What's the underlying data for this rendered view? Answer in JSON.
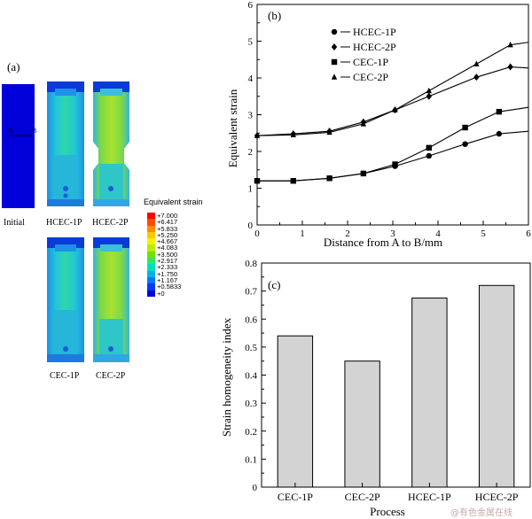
{
  "panel_a": {
    "label": "(a)",
    "section_marker_a": "A",
    "section_marker_b": "B",
    "captions": [
      "Initial",
      "HCEC-1P",
      "HCEC-2P",
      "CEC-1P",
      "CEC-2P"
    ],
    "legend_title": "Equivalent strain",
    "legend_values": [
      "+7.000",
      "+6.417",
      "+5.833",
      "+5.250",
      "+4.667",
      "+4.083",
      "+3.500",
      "+2.917",
      "+2.333",
      "+1.750",
      "+1.167",
      "+0.5833",
      "+0"
    ],
    "legend_colors": [
      "#ff0000",
      "#ff4a00",
      "#ff8c00",
      "#ffc800",
      "#f2f200",
      "#b8ec00",
      "#72e000",
      "#2ee66a",
      "#00e0b8",
      "#00b4e6",
      "#0078ff",
      "#003cf0",
      "#0000d8"
    ]
  },
  "chart_data": [
    {
      "type": "line",
      "panel_label": "(b)",
      "xlabel": "Distance from A to B/mm",
      "ylabel": "Equivalent strain",
      "xlim": [
        0,
        6
      ],
      "ylim": [
        0,
        6
      ],
      "xticks": [
        0,
        1,
        2,
        3,
        4,
        5,
        6
      ],
      "yticks": [
        0,
        1,
        2,
        3,
        4,
        5,
        6
      ],
      "legend_position": "top-left",
      "series": [
        {
          "name": "HCEC-1P",
          "marker": "circle",
          "x": [
            0,
            0.8,
            1.6,
            2.35,
            3.05,
            3.8,
            4.6,
            5.35,
            6
          ],
          "y": [
            1.2,
            1.2,
            1.27,
            1.4,
            1.6,
            1.88,
            2.2,
            2.48,
            2.55
          ]
        },
        {
          "name": "HCEC-2P",
          "marker": "diamond",
          "x": [
            0,
            0.8,
            1.6,
            2.35,
            3.05,
            3.8,
            4.85,
            5.6,
            6
          ],
          "y": [
            2.43,
            2.48,
            2.55,
            2.8,
            3.13,
            3.5,
            4.02,
            4.3,
            4.27
          ]
        },
        {
          "name": "CEC-1P",
          "marker": "square",
          "x": [
            0,
            0.8,
            1.6,
            2.35,
            3.05,
            3.8,
            4.6,
            5.35,
            6
          ],
          "y": [
            1.2,
            1.2,
            1.27,
            1.4,
            1.65,
            2.1,
            2.65,
            3.08,
            3.2
          ]
        },
        {
          "name": "CEC-2P",
          "marker": "triangle",
          "x": [
            0,
            0.8,
            1.6,
            2.35,
            3.05,
            3.8,
            4.85,
            5.6,
            6
          ],
          "y": [
            2.43,
            2.45,
            2.52,
            2.75,
            3.13,
            3.65,
            4.38,
            4.9,
            4.97
          ]
        }
      ]
    },
    {
      "type": "bar",
      "panel_label": "(c)",
      "xlabel": "Process",
      "ylabel": "Strain homogeneity index",
      "ylim": [
        0,
        0.8
      ],
      "yticks": [
        0,
        0.1,
        0.2,
        0.3,
        0.4,
        0.5,
        0.6,
        0.7,
        0.8
      ],
      "categories": [
        "CEC-1P",
        "CEC-2P",
        "HCEC-1P",
        "HCEC-2P"
      ],
      "values": [
        0.54,
        0.45,
        0.675,
        0.72
      ],
      "bar_color": "#d3d3d3"
    }
  ],
  "watermark": "@有色金属在线"
}
